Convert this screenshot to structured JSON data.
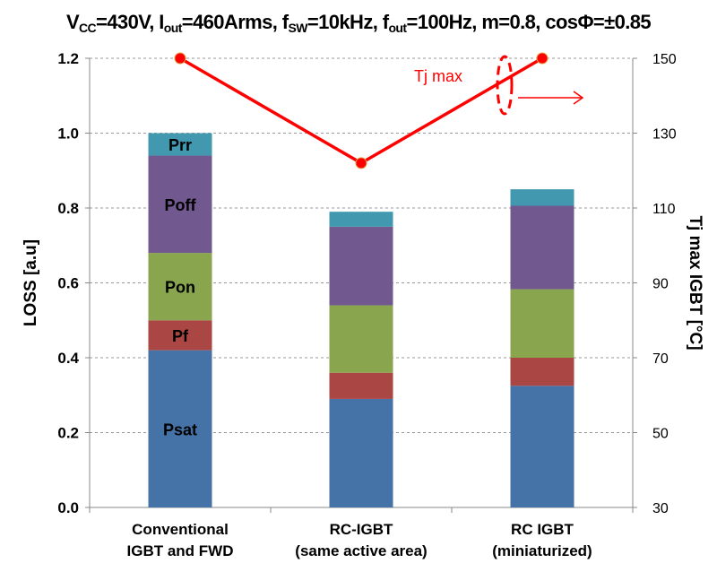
{
  "chart_data": {
    "type": "bar",
    "stacked": true,
    "title_parts": [
      {
        "t": "V"
      },
      {
        "sub": "CC"
      },
      {
        "t": "=430V, I"
      },
      {
        "sub": "out"
      },
      {
        "t": "=460Arms, f"
      },
      {
        "sub": "SW"
      },
      {
        "t": "=10kHz, f"
      },
      {
        "sub": "out"
      },
      {
        "t": "=100Hz, m=0.8, cosΦ=±0.85"
      }
    ],
    "categories": [
      [
        "Conventional",
        "IGBT and FWD"
      ],
      [
        "RC-IGBT",
        "(same active area)"
      ],
      [
        "RC IGBT",
        "(miniaturized)"
      ]
    ],
    "series": [
      {
        "name": "Psat",
        "color": "#4572A7",
        "values": [
          0.42,
          0.29,
          0.325
        ]
      },
      {
        "name": "Pf",
        "color": "#AA4643",
        "values": [
          0.08,
          0.07,
          0.075
        ]
      },
      {
        "name": "Pon",
        "color": "#89A54E",
        "values": [
          0.18,
          0.18,
          0.183
        ]
      },
      {
        "name": "Poff",
        "color": "#71588F",
        "values": [
          0.26,
          0.21,
          0.223
        ]
      },
      {
        "name": "Prr",
        "color": "#4198AF",
        "values": [
          0.06,
          0.04,
          0.044
        ]
      }
    ],
    "line_series": {
      "name": "Tj max",
      "color": "#FF0000",
      "axis": "right",
      "values": [
        150,
        122,
        150
      ]
    },
    "ylabel": "LOSS [a.u]",
    "ylim": [
      0,
      1.2
    ],
    "yticks": [
      "0.0",
      "0.2",
      "0.4",
      "0.6",
      "0.8",
      "1.0",
      "1.2"
    ],
    "y2label": "Tj max IGBT [°C]",
    "y2lim": [
      30,
      150
    ],
    "y2ticks": [
      "30",
      "50",
      "70",
      "90",
      "110",
      "130",
      "150"
    ],
    "grid": true,
    "annotation": "Tj max"
  }
}
